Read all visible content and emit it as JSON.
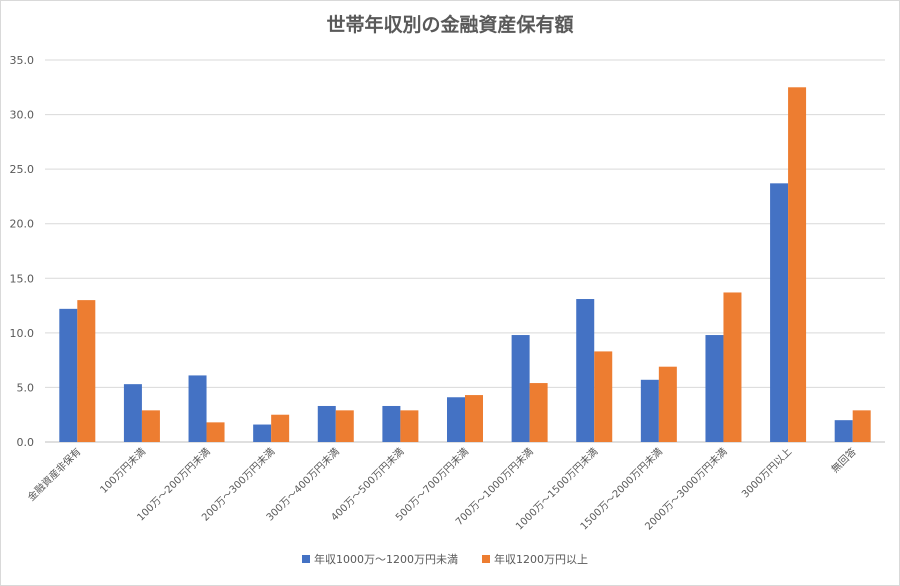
{
  "chart_data": {
    "type": "bar",
    "title": "世帯年収別の金融資産保有額",
    "xlabel": "",
    "ylabel": "",
    "ylim": [
      0,
      35
    ],
    "yticks": [
      "0.0",
      "5.0",
      "10.0",
      "15.0",
      "20.0",
      "25.0",
      "30.0",
      "35.0"
    ],
    "grid": true,
    "legend_position": "bottom",
    "categories": [
      "金融資産非保有",
      "100万円未満",
      "100万～200万円未満",
      "200万～300万円未満",
      "300万～400万円未満",
      "400万～500万円未満",
      "500万～700万円未満",
      "700万～1000万円未満",
      "1000万～1500万円未満",
      "1500万～2000万円未満",
      "2000万～3000万円未満",
      "3000万円以上",
      "無回答"
    ],
    "series": [
      {
        "name": "年収1000万～1200万円未満",
        "color": "#4472c4",
        "values": [
          12.2,
          5.3,
          6.1,
          1.6,
          3.3,
          3.3,
          4.1,
          9.8,
          13.1,
          5.7,
          9.8,
          23.7,
          2.0
        ]
      },
      {
        "name": "年収1200万円以上",
        "color": "#ed7d31",
        "values": [
          13.0,
          2.9,
          1.8,
          2.5,
          2.9,
          2.9,
          4.3,
          5.4,
          8.3,
          6.9,
          13.7,
          32.5,
          2.9
        ]
      }
    ]
  }
}
